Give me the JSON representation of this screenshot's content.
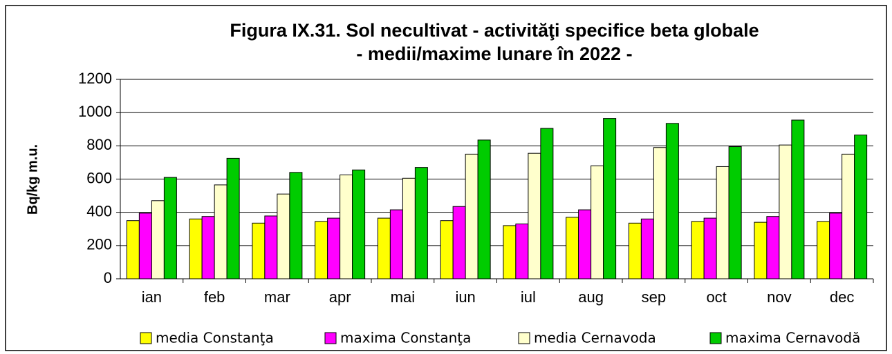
{
  "chart_data": {
    "type": "bar",
    "title_lines": [
      "Figura IX.31. Sol necultivat - activităţi specifice beta globale",
      "- medii/maxime lunare în 2022 -"
    ],
    "y_label": "Bq/kg m.u.",
    "categories": [
      "ian",
      "feb",
      "mar",
      "apr",
      "mai",
      "iun",
      "iul",
      "aug",
      "sep",
      "oct",
      "nov",
      "dec"
    ],
    "series": [
      {
        "name": "media Constanţa",
        "color": "#ffff00",
        "values": [
          350,
          360,
          335,
          345,
          365,
          350,
          320,
          370,
          335,
          345,
          340,
          345
        ]
      },
      {
        "name": "maxima Constanţa",
        "color": "#ff00ff",
        "values": [
          395,
          375,
          378,
          365,
          415,
          435,
          330,
          415,
          360,
          365,
          375,
          395
        ]
      },
      {
        "name": "media Cernavoda",
        "color": "#ffffcc",
        "values": [
          470,
          565,
          510,
          625,
          605,
          750,
          755,
          680,
          790,
          675,
          805,
          750
        ]
      },
      {
        "name": "maxima Cernavodă",
        "color": "#00cc00",
        "values": [
          610,
          725,
          640,
          655,
          670,
          835,
          905,
          965,
          935,
          795,
          955,
          865
        ]
      }
    ],
    "ylim": [
      0,
      1200
    ],
    "yticks": [
      0,
      200,
      400,
      600,
      800,
      1000,
      1200
    ],
    "grid": true,
    "legend": "bottom"
  }
}
